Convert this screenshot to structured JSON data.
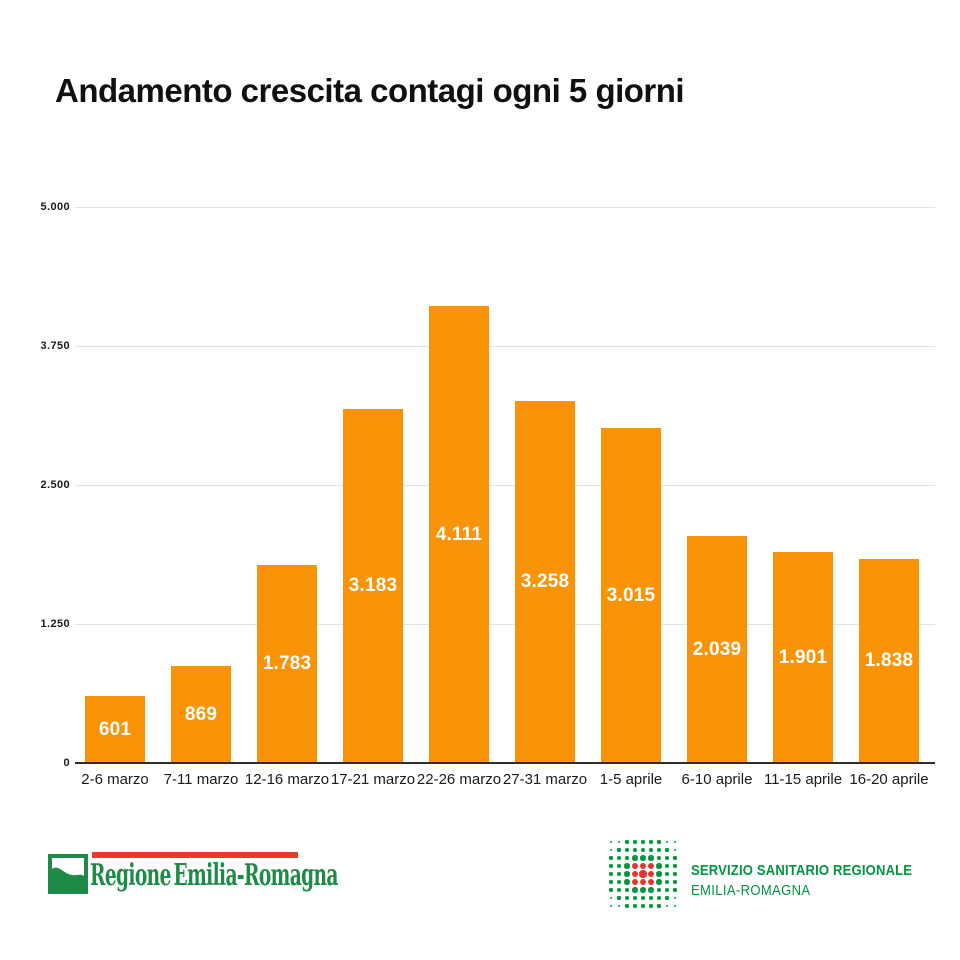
{
  "title": "Andamento crescita contagi ogni 5 giorni",
  "chart_data": {
    "type": "bar",
    "title": "Andamento crescita contagi ogni 5 giorni",
    "categories": [
      "2-6 marzo",
      "7-11 marzo",
      "12-16 marzo",
      "17-21 marzo",
      "22-26 marzo",
      "27-31 marzo",
      "1-5 aprile",
      "6-10 aprile",
      "11-15 aprile",
      "16-20 aprile"
    ],
    "values": [
      601,
      869,
      1783,
      3183,
      4111,
      3258,
      3015,
      2039,
      1901,
      1838
    ],
    "value_labels": [
      "601",
      "869",
      "1.783",
      "3.183",
      "4.111",
      "3.258",
      "3.015",
      "2.039",
      "1.901",
      "1.838"
    ],
    "xlabel": "",
    "ylabel": "",
    "ylim": [
      0,
      5000
    ],
    "yticks": [
      {
        "value": 5000,
        "label": "5.000"
      },
      {
        "value": 3750,
        "label": "3.750"
      },
      {
        "value": 2500,
        "label": "2.500"
      },
      {
        "value": 1250,
        "label": "1.250"
      },
      {
        "value": 0,
        "label": "0"
      }
    ],
    "grid": true,
    "legend": false,
    "bar_color": "#F99408",
    "value_label_color": "#FFFFFF"
  },
  "footer": {
    "regione_logo": {
      "text": "Regione Emilia-Romagna",
      "text_color": "#1E8A47",
      "bar_color": "#E63B2E",
      "green": "#1E8A47"
    },
    "ssr_logo": {
      "line1": "SERVIZIO SANITARIO REGIONALE",
      "line2": "EMILIA-ROMAGNA",
      "text_color": "#009640",
      "dot_green": "#009640",
      "dot_red": "#E5352D",
      "grid_size": 9,
      "red_cells": [
        [
          3,
          3
        ],
        [
          3,
          4
        ],
        [
          3,
          5
        ],
        [
          4,
          3
        ],
        [
          4,
          4
        ],
        [
          4,
          5
        ],
        [
          5,
          3
        ],
        [
          5,
          4
        ],
        [
          5,
          5
        ]
      ]
    }
  }
}
